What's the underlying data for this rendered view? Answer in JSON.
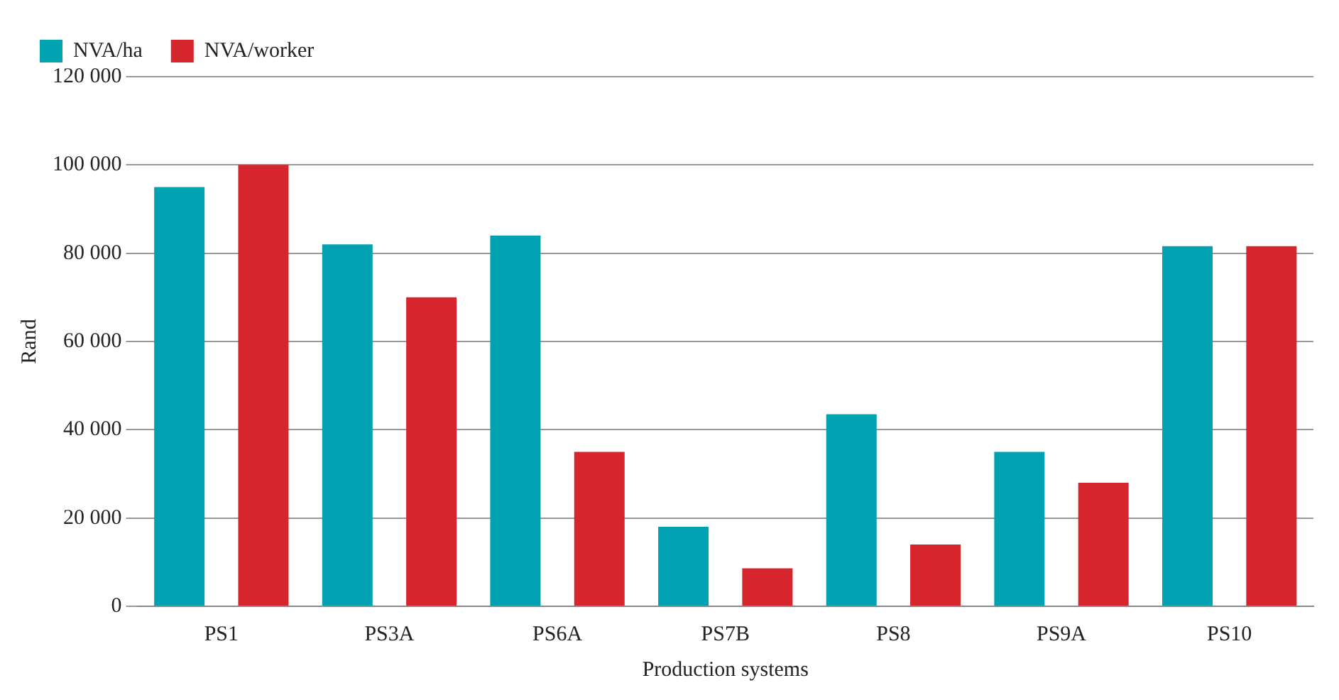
{
  "chart_data": {
    "type": "bar",
    "xlabel": "Production systems",
    "ylabel": "Rand",
    "categories": [
      "PS1",
      "PS3A",
      "PS6A",
      "PS7B",
      "PS8",
      "PS9A",
      "PS10"
    ],
    "series": [
      {
        "name": "NVA/ha",
        "color": "#00a1b0",
        "values": [
          95000,
          82000,
          84000,
          18000,
          43500,
          35000,
          81600
        ]
      },
      {
        "name": "NVA/worker",
        "color": "#d7252e",
        "values": [
          100000,
          70000,
          35000,
          8600,
          14000,
          28000,
          81600
        ]
      }
    ],
    "ylim": [
      0,
      120000
    ],
    "yticks": [
      {
        "value": 0,
        "label": "0"
      },
      {
        "value": 20000,
        "label": "20 000"
      },
      {
        "value": 40000,
        "label": "40 000"
      },
      {
        "value": 60000,
        "label": "60 000"
      },
      {
        "value": 80000,
        "label": "80 000"
      },
      {
        "value": 100000,
        "label": "100 000"
      },
      {
        "value": 120000,
        "label": "120 000"
      }
    ],
    "grid": "y",
    "legend": "top left"
  }
}
